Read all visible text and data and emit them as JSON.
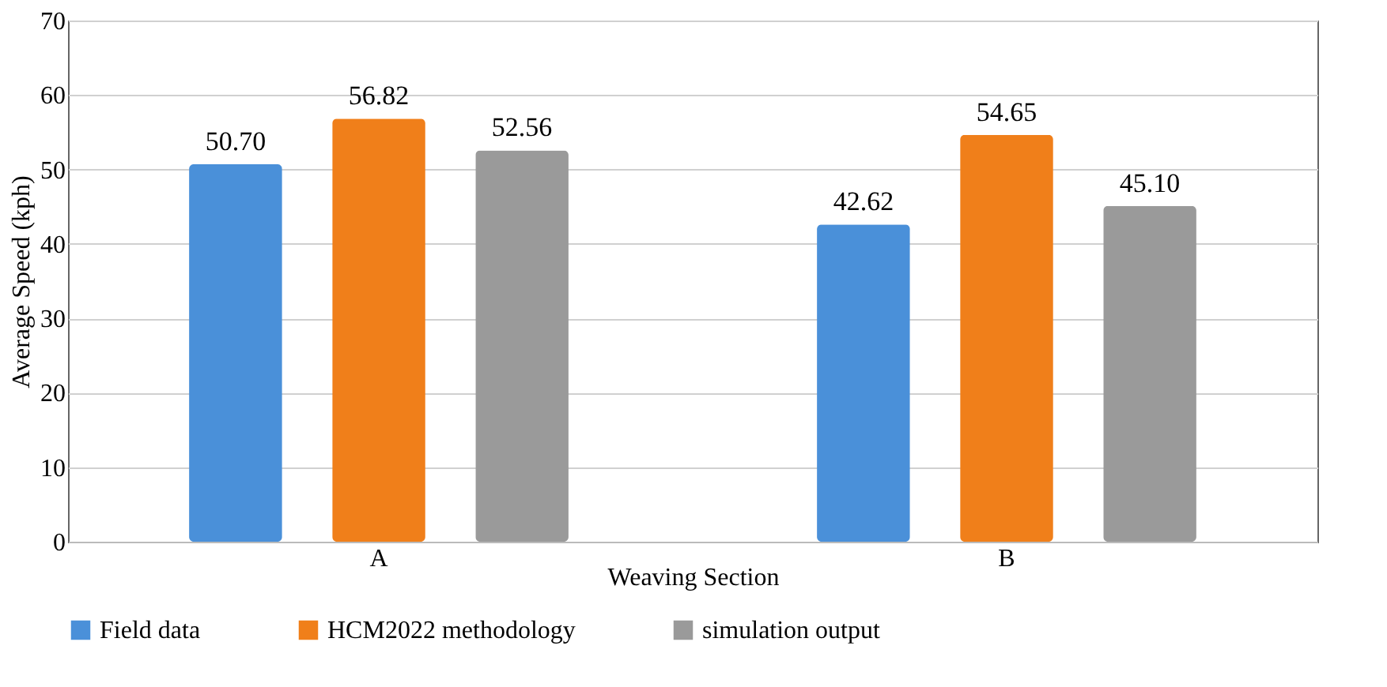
{
  "chart_data": {
    "type": "bar",
    "xlabel": "Weaving Section",
    "ylabel": "Average Speed (kph)",
    "categories": [
      "A",
      "B"
    ],
    "series": [
      {
        "name": "Field data",
        "color": "#4a90d9",
        "values": [
          50.7,
          42.62
        ]
      },
      {
        "name": "HCM2022 methodology",
        "color": "#f07f1a",
        "values": [
          56.82,
          54.65
        ]
      },
      {
        "name": "simulation output",
        "color": "#9a9a9a",
        "values": [
          52.56,
          45.1
        ]
      }
    ],
    "value_labels": [
      [
        "50.70",
        "42.62"
      ],
      [
        "56.82",
        "54.65"
      ],
      [
        "52.56",
        "45.10"
      ]
    ],
    "ylim": [
      0,
      70
    ],
    "yticks": [
      0,
      10,
      20,
      30,
      40,
      50,
      60,
      70
    ],
    "grid": "y",
    "legend": "bottom"
  }
}
